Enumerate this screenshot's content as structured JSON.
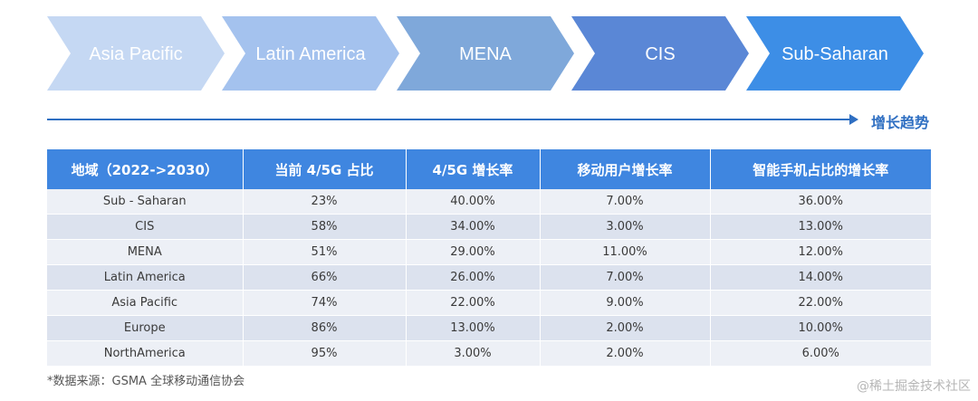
{
  "flow": {
    "stages": [
      {
        "label": "Asia Pacific",
        "color": "#c5d8f3"
      },
      {
        "label": "Latin America",
        "color": "#a4c2ee"
      },
      {
        "label": "MENA",
        "color": "#7fa8da"
      },
      {
        "label": "CIS",
        "color": "#5a87d6"
      },
      {
        "label": "Sub-Saharan",
        "color": "#3d8ee6"
      }
    ],
    "trend_label": "增长趋势",
    "accent_color": "#2f6fc2"
  },
  "table": {
    "header_color": "#3f86e0",
    "headers": [
      "地域（2022->2030）",
      "当前 4/5G 占比",
      "4/5G 增长率",
      "移动用户增长率",
      "智能手机占比的增长率"
    ],
    "rows": [
      [
        "Sub - Saharan",
        "23%",
        "40.00%",
        "7.00%",
        "36.00%"
      ],
      [
        "CIS",
        "58%",
        "34.00%",
        "3.00%",
        "13.00%"
      ],
      [
        "MENA",
        "51%",
        "29.00%",
        "11.00%",
        "12.00%"
      ],
      [
        "Latin America",
        "66%",
        "26.00%",
        "7.00%",
        "14.00%"
      ],
      [
        "Asia Pacific",
        "74%",
        "22.00%",
        "9.00%",
        "22.00%"
      ],
      [
        "Europe",
        "86%",
        "13.00%",
        "2.00%",
        "10.00%"
      ],
      [
        "NorthAmerica",
        "95%",
        "3.00%",
        "2.00%",
        "6.00%"
      ]
    ]
  },
  "footer": {
    "source_note": "*数据来源：GSMA 全球移动通信协会",
    "watermark": "@稀土掘金技术社区"
  }
}
